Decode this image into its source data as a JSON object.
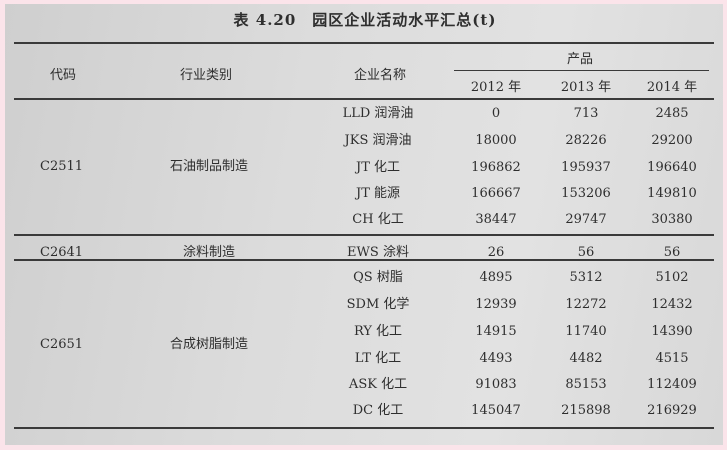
{
  "title": "表 4.20　园区企业活动水平汇总(t)",
  "headers": {
    "code": "代码",
    "industry": "行业类别",
    "company": "企业名称",
    "product": "产品",
    "years": [
      "2012 年",
      "2013 年",
      "2014 年"
    ]
  },
  "groups": [
    {
      "code": "C2511",
      "industry": "石油制品制造",
      "rows": [
        {
          "company": "LLD 润滑油",
          "values": [
            "0",
            "713",
            "2485"
          ]
        },
        {
          "company": "JKS 润滑油",
          "values": [
            "18000",
            "28226",
            "29200"
          ]
        },
        {
          "company": "JT 化工",
          "values": [
            "196862",
            "195937",
            "196640"
          ]
        },
        {
          "company": "JT 能源",
          "values": [
            "166667",
            "153206",
            "149810"
          ]
        },
        {
          "company": "CH 化工",
          "values": [
            "38447",
            "29747",
            "30380"
          ]
        }
      ]
    },
    {
      "code": "C2641",
      "industry": "涂料制造",
      "rows": [
        {
          "company": "EWS 涂料",
          "values": [
            "26",
            "56",
            "56"
          ]
        }
      ]
    },
    {
      "code": "C2651",
      "industry": "合成树脂制造",
      "rows": [
        {
          "company": "QS 树脂",
          "values": [
            "4895",
            "5312",
            "5102"
          ]
        },
        {
          "company": "SDM 化学",
          "values": [
            "12939",
            "12272",
            "12432"
          ]
        },
        {
          "company": "RY 化工",
          "values": [
            "14915",
            "11740",
            "14390"
          ]
        },
        {
          "company": "LT 化工",
          "values": [
            "4493",
            "4482",
            "4515"
          ]
        },
        {
          "company": "ASK 化工",
          "values": [
            "91083",
            "85153",
            "112409"
          ]
        },
        {
          "company": "DC 化工",
          "values": [
            "145047",
            "215898",
            "216929"
          ]
        }
      ]
    }
  ]
}
